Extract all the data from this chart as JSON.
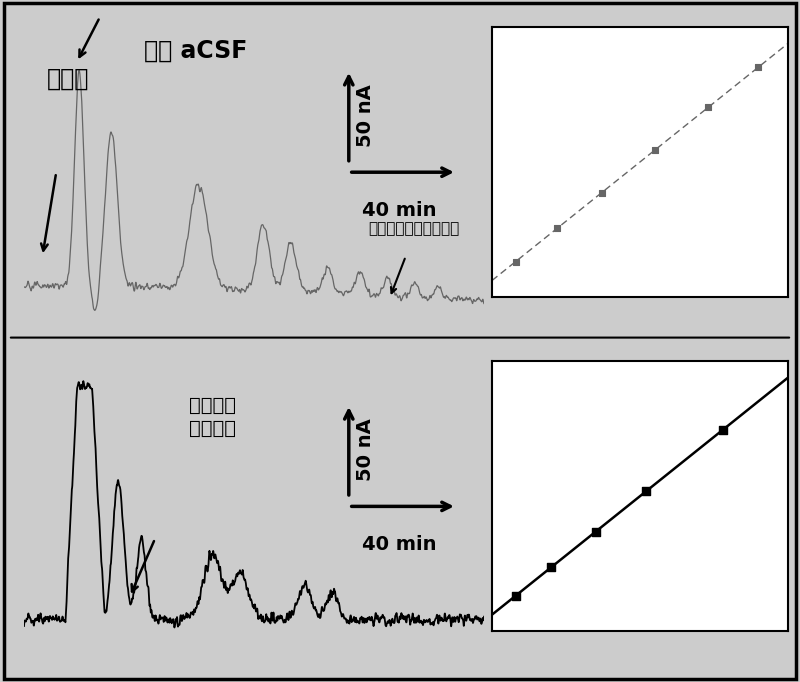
{
  "bg_color": "#cccccc",
  "top_signal_color": "#666666",
  "bottom_signal_color": "#000000",
  "inset1_line_color": "#666666",
  "inset2_line_color": "#000000",
  "label_wuMei": "无镇 aCSF",
  "label_hunhe": "混合液",
  "label_top_electrode": "甲苯胺蓝修饰工作电极",
  "label_bottom_electrode": "碳管修饰",
  "label_bottom_electrode2": "工作电极",
  "axis_label_nA": "50 nA",
  "axis_label_min": "40 min",
  "fontsize_large": 17,
  "fontsize_medium": 14,
  "fontsize_small": 12
}
